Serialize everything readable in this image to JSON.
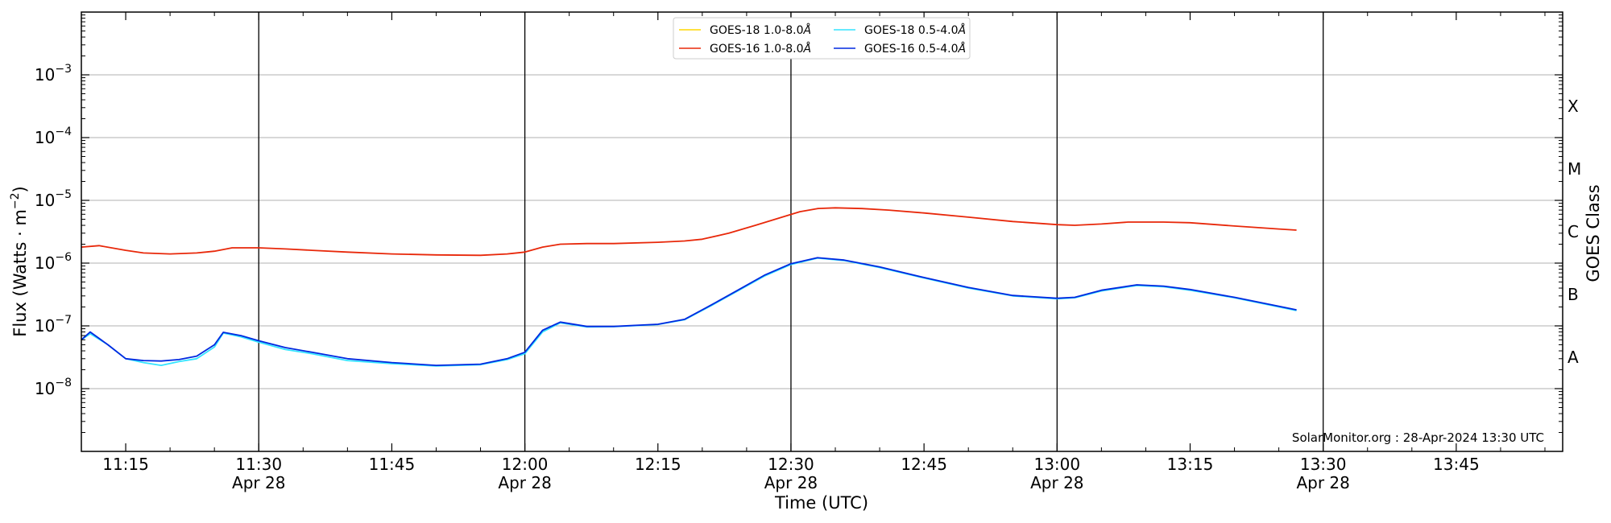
{
  "chart_data": {
    "type": "line",
    "xlabel": "Time (UTC)",
    "ylabel": "Flux (Watts · m",
    "ylabel_sup": "−2",
    "ylabel_close": ")",
    "y2label": "GOES Class",
    "yscale": "log",
    "ylim": [
      1e-09,
      0.01
    ],
    "xlim": [
      "11:10",
      "13:57"
    ],
    "grid": "horizontal",
    "legend_position": "top-center",
    "credit": "SolarMonitor.org : 28-Apr-2024 13:30 UTC",
    "x_ticks": [
      {
        "time": "11:15",
        "label": "11:15",
        "date": ""
      },
      {
        "time": "11:30",
        "label": "11:30",
        "date": "Apr 28"
      },
      {
        "time": "11:45",
        "label": "11:45",
        "date": ""
      },
      {
        "time": "12:00",
        "label": "12:00",
        "date": "Apr 28"
      },
      {
        "time": "12:15",
        "label": "12:15",
        "date": ""
      },
      {
        "time": "12:30",
        "label": "12:30",
        "date": "Apr 28"
      },
      {
        "time": "12:45",
        "label": "12:45",
        "date": ""
      },
      {
        "time": "13:00",
        "label": "13:00",
        "date": "Apr 28"
      },
      {
        "time": "13:15",
        "label": "13:15",
        "date": ""
      },
      {
        "time": "13:30",
        "label": "13:30",
        "date": "Apr 28"
      },
      {
        "time": "13:45",
        "label": "13:45",
        "date": ""
      }
    ],
    "vlines": [
      "11:30",
      "12:00",
      "12:30",
      "13:00",
      "13:30"
    ],
    "y_ticks": [
      {
        "exp": -8,
        "base": "10",
        "sup": "−8"
      },
      {
        "exp": -7,
        "base": "10",
        "sup": "−7"
      },
      {
        "exp": -6,
        "base": "10",
        "sup": "−6"
      },
      {
        "exp": -5,
        "base": "10",
        "sup": "−5"
      },
      {
        "exp": -4,
        "base": "10",
        "sup": "−4"
      },
      {
        "exp": -3,
        "base": "10",
        "sup": "−3"
      }
    ],
    "goes_classes": [
      {
        "label": "A",
        "exp": -7.5
      },
      {
        "label": "B",
        "exp": -6.5
      },
      {
        "label": "C",
        "exp": -5.5
      },
      {
        "label": "M",
        "exp": -4.5
      },
      {
        "label": "X",
        "exp": -3.5
      }
    ],
    "series": [
      {
        "name": "GOES-18 1.0-8.0",
        "unit": "Å",
        "color": "#ffd700",
        "points": []
      },
      {
        "name": "GOES-16 1.0-8.0",
        "unit": "Å",
        "color": "#e8280a",
        "points": [
          [
            "11:10",
            1.8e-06
          ],
          [
            "11:12",
            1.9e-06
          ],
          [
            "11:15",
            1.6e-06
          ],
          [
            "11:17",
            1.45e-06
          ],
          [
            "11:20",
            1.4e-06
          ],
          [
            "11:23",
            1.45e-06
          ],
          [
            "11:25",
            1.55e-06
          ],
          [
            "11:27",
            1.75e-06
          ],
          [
            "11:30",
            1.75e-06
          ],
          [
            "11:33",
            1.68e-06
          ],
          [
            "11:36",
            1.6e-06
          ],
          [
            "11:40",
            1.5e-06
          ],
          [
            "11:45",
            1.4e-06
          ],
          [
            "11:50",
            1.35e-06
          ],
          [
            "11:55",
            1.33e-06
          ],
          [
            "11:58",
            1.4e-06
          ],
          [
            "12:00",
            1.5e-06
          ],
          [
            "12:02",
            1.8e-06
          ],
          [
            "12:04",
            2e-06
          ],
          [
            "12:07",
            2.05e-06
          ],
          [
            "12:10",
            2.05e-06
          ],
          [
            "12:15",
            2.15e-06
          ],
          [
            "12:18",
            2.25e-06
          ],
          [
            "12:20",
            2.4e-06
          ],
          [
            "12:23",
            3e-06
          ],
          [
            "12:26",
            4e-06
          ],
          [
            "12:29",
            5.4e-06
          ],
          [
            "12:31",
            6.6e-06
          ],
          [
            "12:33",
            7.4e-06
          ],
          [
            "12:35",
            7.6e-06
          ],
          [
            "12:38",
            7.4e-06
          ],
          [
            "12:41",
            7e-06
          ],
          [
            "12:45",
            6.3e-06
          ],
          [
            "12:50",
            5.4e-06
          ],
          [
            "12:55",
            4.6e-06
          ],
          [
            "13:00",
            4.1e-06
          ],
          [
            "13:02",
            4e-06
          ],
          [
            "13:05",
            4.2e-06
          ],
          [
            "13:08",
            4.5e-06
          ],
          [
            "13:12",
            4.5e-06
          ],
          [
            "13:15",
            4.4e-06
          ],
          [
            "13:20",
            3.9e-06
          ],
          [
            "13:25",
            3.5e-06
          ],
          [
            "13:27",
            3.35e-06
          ]
        ]
      },
      {
        "name": "GOES-18 0.5-4.0",
        "unit": "Å",
        "color": "#33e4ff",
        "points": [
          [
            "11:10",
            6e-08
          ],
          [
            "11:11",
            7.5e-08
          ],
          [
            "11:13",
            5e-08
          ],
          [
            "11:15",
            3e-08
          ],
          [
            "11:17",
            2.6e-08
          ],
          [
            "11:19",
            2.35e-08
          ],
          [
            "11:21",
            2.7e-08
          ],
          [
            "11:23",
            3e-08
          ],
          [
            "11:25",
            4.6e-08
          ],
          [
            "11:26",
            7.7e-08
          ],
          [
            "11:28",
            6.7e-08
          ],
          [
            "11:30",
            5.5e-08
          ],
          [
            "11:33",
            4.2e-08
          ],
          [
            "11:36",
            3.6e-08
          ],
          [
            "11:40",
            2.8e-08
          ],
          [
            "11:45",
            2.5e-08
          ],
          [
            "11:50",
            2.3e-08
          ],
          [
            "11:55",
            2.4e-08
          ],
          [
            "11:58",
            2.9e-08
          ],
          [
            "12:00",
            3.6e-08
          ],
          [
            "12:02",
            8e-08
          ],
          [
            "12:04",
            1.12e-07
          ],
          [
            "12:07",
            9.6e-08
          ],
          [
            "12:10",
            9.7e-08
          ],
          [
            "12:15",
            1.05e-07
          ],
          [
            "12:18",
            1.25e-07
          ],
          [
            "12:21",
            2.1e-07
          ],
          [
            "12:24",
            3.6e-07
          ],
          [
            "12:27",
            6.2e-07
          ],
          [
            "12:30",
            9.5e-07
          ],
          [
            "12:33",
            1.2e-06
          ],
          [
            "12:36",
            1.1e-06
          ],
          [
            "12:40",
            8.5e-07
          ],
          [
            "12:45",
            5.8e-07
          ],
          [
            "12:50",
            4e-07
          ],
          [
            "12:55",
            3e-07
          ],
          [
            "13:00",
            2.7e-07
          ],
          [
            "13:02",
            2.8e-07
          ],
          [
            "13:05",
            3.6e-07
          ],
          [
            "13:09",
            4.4e-07
          ],
          [
            "13:12",
            4.2e-07
          ],
          [
            "13:15",
            3.7e-07
          ],
          [
            "13:20",
            2.8e-07
          ],
          [
            "13:27",
            1.75e-07
          ]
        ]
      },
      {
        "name": "GOES-16 0.5-4.0",
        "unit": "Å",
        "color": "#0028e0",
        "points": [
          [
            "11:10",
            6e-08
          ],
          [
            "11:11",
            8e-08
          ],
          [
            "11:13",
            5e-08
          ],
          [
            "11:15",
            3e-08
          ],
          [
            "11:17",
            2.8e-08
          ],
          [
            "11:19",
            2.75e-08
          ],
          [
            "11:21",
            2.9e-08
          ],
          [
            "11:23",
            3.3e-08
          ],
          [
            "11:25",
            5e-08
          ],
          [
            "11:26",
            7.9e-08
          ],
          [
            "11:28",
            7e-08
          ],
          [
            "11:30",
            5.8e-08
          ],
          [
            "11:33",
            4.5e-08
          ],
          [
            "11:36",
            3.8e-08
          ],
          [
            "11:40",
            3e-08
          ],
          [
            "11:45",
            2.6e-08
          ],
          [
            "11:50",
            2.35e-08
          ],
          [
            "11:55",
            2.45e-08
          ],
          [
            "11:58",
            3e-08
          ],
          [
            "12:00",
            3.8e-08
          ],
          [
            "12:02",
            8.5e-08
          ],
          [
            "12:04",
            1.15e-07
          ],
          [
            "12:07",
            9.8e-08
          ],
          [
            "12:10",
            9.8e-08
          ],
          [
            "12:15",
            1.06e-07
          ],
          [
            "12:18",
            1.27e-07
          ],
          [
            "12:21",
            2.15e-07
          ],
          [
            "12:24",
            3.7e-07
          ],
          [
            "12:27",
            6.4e-07
          ],
          [
            "12:30",
            9.8e-07
          ],
          [
            "12:33",
            1.22e-06
          ],
          [
            "12:36",
            1.12e-06
          ],
          [
            "12:40",
            8.7e-07
          ],
          [
            "12:45",
            5.9e-07
          ],
          [
            "12:50",
            4.1e-07
          ],
          [
            "12:55",
            3.05e-07
          ],
          [
            "13:00",
            2.75e-07
          ],
          [
            "13:02",
            2.85e-07
          ],
          [
            "13:05",
            3.7e-07
          ],
          [
            "13:09",
            4.5e-07
          ],
          [
            "13:12",
            4.3e-07
          ],
          [
            "13:15",
            3.8e-07
          ],
          [
            "13:20",
            2.85e-07
          ],
          [
            "13:27",
            1.8e-07
          ]
        ]
      }
    ]
  }
}
